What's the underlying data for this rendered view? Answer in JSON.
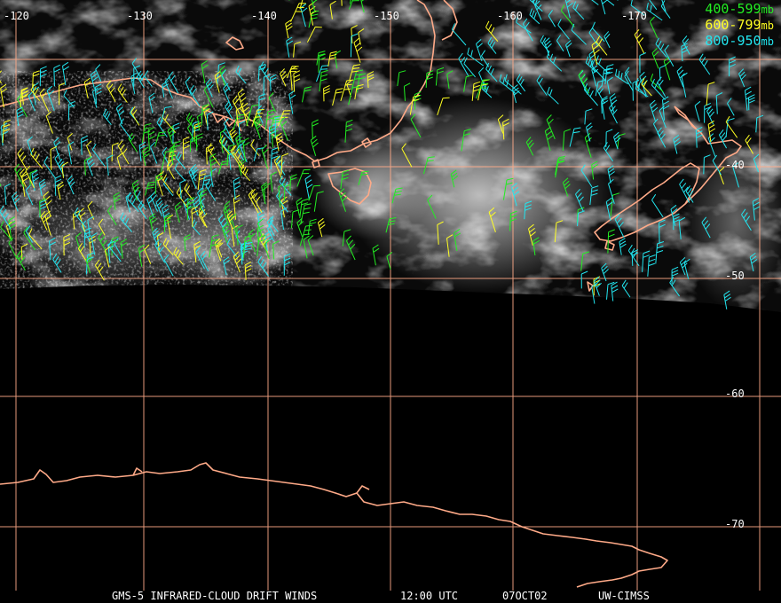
{
  "map": {
    "lon_labels": [
      "-120",
      "-130",
      "-140",
      "-150",
      "-160",
      "-170"
    ],
    "lat_labels": [
      "-40",
      "-50",
      "-60",
      "-70"
    ],
    "legend": [
      {
        "range": "400-599",
        "unit": "mb",
        "color": "#22ee22"
      },
      {
        "range": "600-799",
        "unit": "mb",
        "color": "#ffff22"
      },
      {
        "range": "800-950",
        "unit": "mb",
        "color": "#22e6f0"
      }
    ],
    "caption": {
      "product": "GMS-5 INFRARED-CLOUD DRIFT WINDS",
      "time": "12:00 UTC",
      "date": "07OCT02",
      "source": "UW-CIMSS"
    },
    "colors": {
      "coastline": "#ffaa88",
      "grid": "#ffaa88"
    }
  }
}
